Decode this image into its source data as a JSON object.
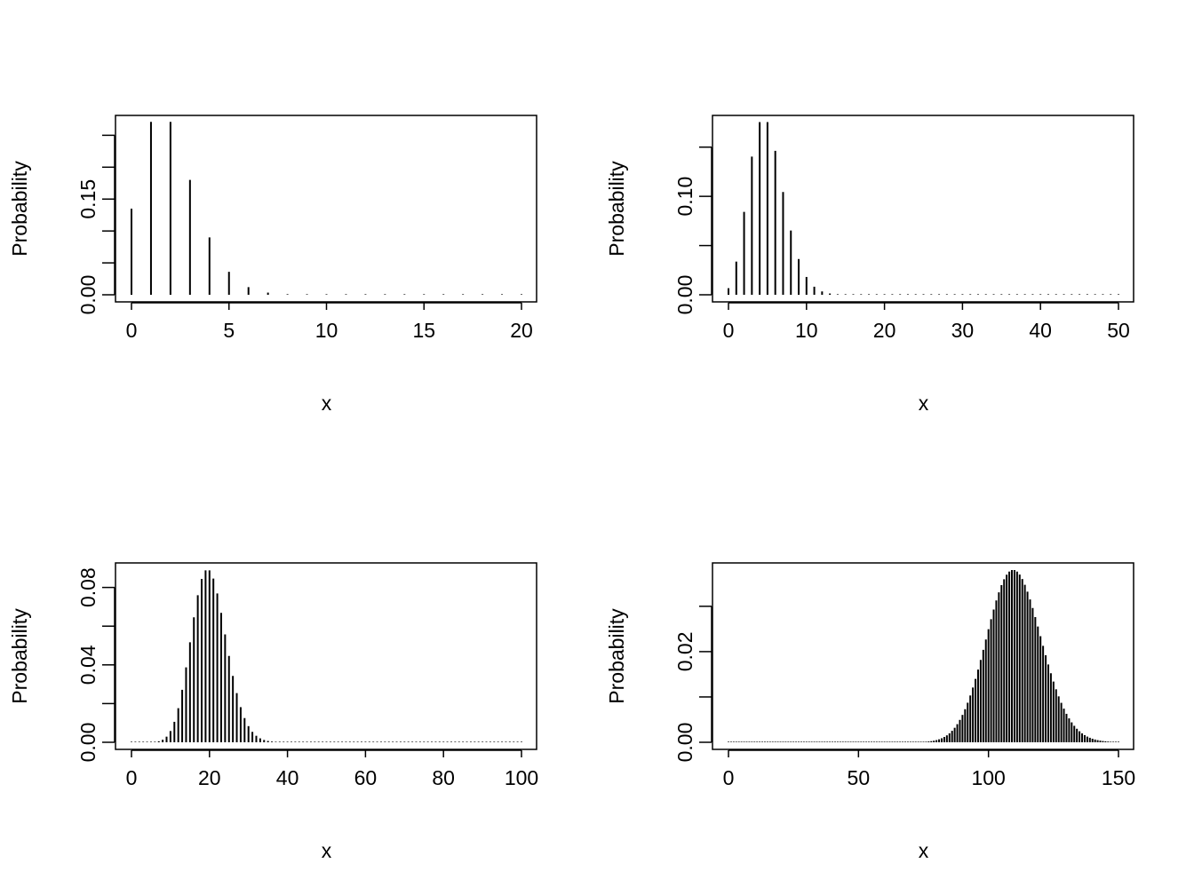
{
  "chart_data": [
    {
      "type": "bar",
      "panel": "top-left",
      "xlabel": "x",
      "ylabel": "Probability",
      "xlim": [
        0,
        20
      ],
      "ylim": [
        0,
        0.27
      ],
      "x_ticks": [
        0,
        5,
        10,
        15,
        20
      ],
      "y_ticks": [
        0,
        0.05,
        0.1,
        0.15,
        0.2,
        0.25
      ],
      "y_tick_labels": [
        "0.00",
        "",
        "",
        "0.15",
        "",
        ""
      ],
      "x": [
        0,
        1,
        2,
        3,
        4,
        5,
        6,
        7,
        8,
        9,
        10,
        11,
        12,
        13,
        14,
        15,
        16,
        17,
        18,
        19,
        20
      ],
      "values": [
        0.135,
        0.271,
        0.271,
        0.18,
        0.09,
        0.036,
        0.012,
        0.0034,
        0.0009,
        0.0002,
        4e-05,
        0,
        0,
        0,
        0,
        0,
        0,
        0,
        0,
        0,
        0
      ]
    },
    {
      "type": "bar",
      "panel": "top-right",
      "xlabel": "x",
      "ylabel": "Probability",
      "xlim": [
        0,
        50
      ],
      "ylim": [
        0,
        0.175
      ],
      "x_ticks": [
        0,
        10,
        20,
        30,
        40,
        50
      ],
      "y_ticks": [
        0,
        0.05,
        0.1,
        0.15
      ],
      "y_tick_labels": [
        "0.00",
        "",
        "0.10",
        ""
      ],
      "x": [
        0,
        1,
        2,
        3,
        4,
        5,
        6,
        7,
        8,
        9,
        10,
        11,
        12,
        13,
        14,
        15,
        16,
        17,
        18,
        19,
        20,
        21,
        22,
        23,
        24,
        25,
        26,
        27,
        28,
        29,
        30,
        31,
        32,
        33,
        34,
        35,
        36,
        37,
        38,
        39,
        40,
        41,
        42,
        43,
        44,
        45,
        46,
        47,
        48,
        49,
        50
      ],
      "values": [
        0.0067,
        0.0337,
        0.0842,
        0.1404,
        0.1755,
        0.1755,
        0.1462,
        0.1044,
        0.0653,
        0.0363,
        0.0181,
        0.0082,
        0.0034,
        0.0013,
        0.0005,
        0.0002,
        0,
        0,
        0,
        0,
        0,
        0,
        0,
        0,
        0,
        0,
        0,
        0,
        0,
        0,
        0,
        0,
        0,
        0,
        0,
        0,
        0,
        0,
        0,
        0,
        0,
        0,
        0,
        0,
        0,
        0,
        0,
        0,
        0,
        0,
        0
      ]
    },
    {
      "type": "bar",
      "panel": "bottom-left",
      "xlabel": "x",
      "ylabel": "Probability",
      "xlim": [
        0,
        100
      ],
      "ylim": [
        0,
        0.089
      ],
      "x_ticks": [
        0,
        20,
        40,
        60,
        80,
        100
      ],
      "y_ticks": [
        0,
        0.02,
        0.04,
        0.06,
        0.08
      ],
      "y_tick_labels": [
        "0.00",
        "",
        "0.04",
        "",
        "0.08"
      ],
      "poisson_lambda": 20,
      "x_max": 100
    },
    {
      "type": "bar",
      "panel": "bottom-right",
      "xlabel": "x",
      "ylabel": "Probability",
      "xlim": [
        0,
        150
      ],
      "ylim": [
        0,
        0.038
      ],
      "x_ticks": [
        0,
        50,
        100,
        150
      ],
      "y_ticks": [
        0,
        0.01,
        0.02,
        0.03
      ],
      "y_tick_labels": [
        "0.00",
        "",
        "0.02",
        ""
      ],
      "poisson_lambda": 110,
      "x_max": 150
    }
  ]
}
